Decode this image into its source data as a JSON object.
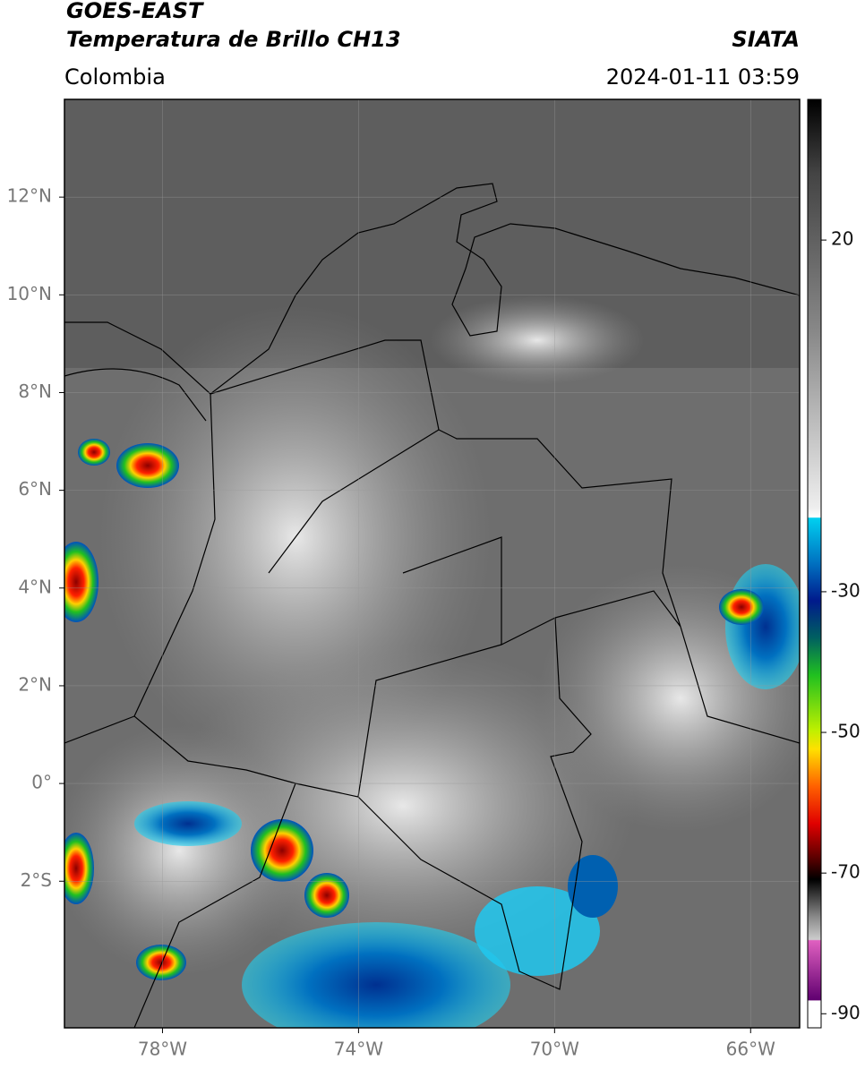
{
  "header": {
    "title": "GOES-EAST",
    "subtitle": "Temperatura de Brillo CH13",
    "source": "SIATA",
    "region": "Colombia",
    "datetime": "2024-01-11 03:59"
  },
  "map": {
    "lonlim": [
      -80,
      -65
    ],
    "latlim": [
      -5,
      14
    ],
    "lon_ticks": [
      {
        "value": -78,
        "label": "78°W"
      },
      {
        "value": -74,
        "label": "74°W"
      },
      {
        "value": -70,
        "label": "70°W"
      },
      {
        "value": -66,
        "label": "66°W"
      }
    ],
    "lat_ticks": [
      {
        "value": 12,
        "label": "12°N"
      },
      {
        "value": 10,
        "label": "10°N"
      },
      {
        "value": 8,
        "label": "8°N"
      },
      {
        "value": 6,
        "label": "6°N"
      },
      {
        "value": 4,
        "label": "4°N"
      },
      {
        "value": 2,
        "label": "2°N"
      },
      {
        "value": 0,
        "label": "0°"
      },
      {
        "value": -2,
        "label": "2°S"
      }
    ]
  },
  "colorbar": {
    "lim": [
      -92,
      40
    ],
    "ticks": [
      20,
      -30,
      -50,
      -70,
      -90
    ]
  }
}
